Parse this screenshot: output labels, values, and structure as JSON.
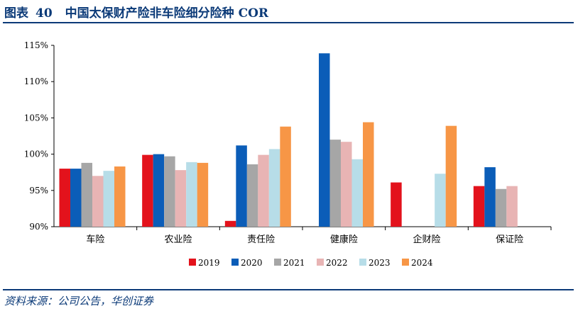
{
  "header": {
    "label": "图表",
    "number": "40",
    "title": "中国太保财产险非车险细分险种 COR"
  },
  "footer": {
    "source": "资料来源：公司公告，华创证券"
  },
  "colors": {
    "accent": "#0b3a78",
    "series": [
      "#e3121c",
      "#0b5db8",
      "#a6a6a6",
      "#e8b4b4",
      "#b7dde8",
      "#f79646"
    ]
  },
  "chart_data": {
    "type": "bar",
    "categories": [
      "车险",
      "农业险",
      "责任险",
      "健康险",
      "企财险",
      "保证险"
    ],
    "series": [
      {
        "name": "2019",
        "values": [
          98.0,
          99.9,
          90.8,
          null,
          96.1,
          95.6
        ]
      },
      {
        "name": "2020",
        "values": [
          98.0,
          100.0,
          101.2,
          113.9,
          null,
          98.2
        ]
      },
      {
        "name": "2021",
        "values": [
          98.8,
          99.7,
          98.6,
          102.0,
          null,
          95.2
        ]
      },
      {
        "name": "2022",
        "values": [
          97.0,
          97.8,
          99.9,
          101.7,
          null,
          95.6
        ]
      },
      {
        "name": "2023",
        "values": [
          97.7,
          98.9,
          100.7,
          99.3,
          97.3,
          null
        ]
      },
      {
        "name": "2024",
        "values": [
          98.3,
          98.8,
          103.8,
          104.4,
          103.9,
          null
        ]
      }
    ],
    "yticks": [
      "90%",
      "95%",
      "100%",
      "105%",
      "110%",
      "115%"
    ],
    "ylim": [
      90,
      115
    ],
    "xlabel": "",
    "ylabel": "",
    "legend_position": "bottom",
    "grid": false
  }
}
